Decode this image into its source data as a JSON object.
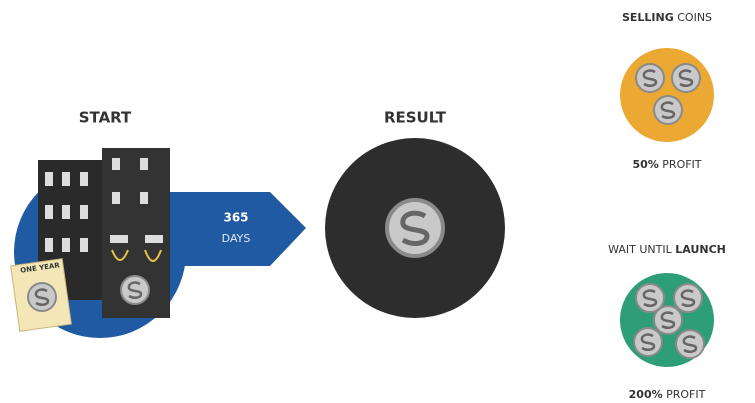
{
  "start": {
    "label": "START",
    "badge": "ONE YEAR"
  },
  "arrow": {
    "number": "365",
    "unit": "DAYS"
  },
  "result": {
    "label": "RESULT"
  },
  "options": [
    {
      "title_bold": "SELLING",
      "title_rest": "COINS",
      "profit_value": "50%",
      "profit_label": "PROFIT"
    },
    {
      "title_rest": "WAIT UNTIL",
      "title_bold": "LAUNCH",
      "profit_value": "200%",
      "profit_label": "PROFIT"
    }
  ]
}
